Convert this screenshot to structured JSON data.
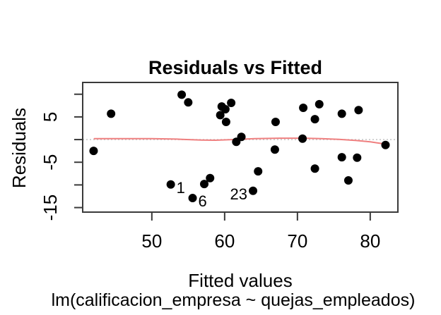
{
  "figure": {
    "title": "Residuals vs Fitted",
    "ylabel": "Residuals",
    "xlabel": "Fitted values",
    "subtitle": "lm(calificacion_empresa ~ quejas_empleados)"
  },
  "colors": {
    "background": "#ffffff",
    "point": "#000000",
    "smooth_line": "#ef7f7f",
    "zero_line": "#c8c8c8",
    "axis": "#3a3a3a",
    "text": "#000000"
  },
  "chart_data": {
    "type": "scatter",
    "title": "Residuals vs Fitted",
    "xlabel": "Fitted values",
    "ylabel": "Residuals",
    "model_caption": "lm(calificacion_empresa ~ quejas_empleados)",
    "x_range": [
      40.5,
      83.8
    ],
    "y_range": [
      -16.0,
      12.6
    ],
    "x_ticks": [
      50,
      60,
      70,
      80
    ],
    "y_ticks": [
      10,
      5,
      0,
      -5,
      -10,
      -15
    ],
    "y_tick_labeled": [
      5,
      -5,
      -15
    ],
    "grid": false,
    "legend": null,
    "point_color": "#000000",
    "points": [
      [
        42.0,
        -2.5
      ],
      [
        44.4,
        5.7
      ],
      [
        52.6,
        -9.9
      ],
      [
        54.1,
        9.9
      ],
      [
        55.0,
        8.2
      ],
      [
        55.6,
        -12.9
      ],
      [
        57.2,
        -9.8
      ],
      [
        58.0,
        -8.5
      ],
      [
        59.4,
        5.4
      ],
      [
        59.6,
        7.3
      ],
      [
        60.1,
        6.7
      ],
      [
        60.2,
        3.9
      ],
      [
        60.9,
        8.1
      ],
      [
        61.6,
        -0.5
      ],
      [
        62.3,
        0.6
      ],
      [
        63.9,
        -11.3
      ],
      [
        64.6,
        -7.0
      ],
      [
        66.9,
        -2.2
      ],
      [
        67.0,
        3.9
      ],
      [
        70.7,
        0.2
      ],
      [
        70.8,
        7.0
      ],
      [
        72.4,
        4.5
      ],
      [
        72.4,
        -6.4
      ],
      [
        73.0,
        7.8
      ],
      [
        76.1,
        5.7
      ],
      [
        76.1,
        -3.9
      ],
      [
        77.0,
        -9.0
      ],
      [
        78.2,
        -4.0
      ],
      [
        78.4,
        6.5
      ],
      [
        82.1,
        -1.2
      ]
    ],
    "labeled_points": [
      {
        "label": "1",
        "x": 52.6,
        "y": -9.9,
        "side": "right"
      },
      {
        "label": "6",
        "x": 55.6,
        "y": -12.9,
        "side": "right"
      },
      {
        "label": "23",
        "x": 63.9,
        "y": -11.3,
        "side": "left"
      }
    ],
    "zero_line": {
      "y": 0,
      "style": "dotted",
      "color": "#c8c8c8"
    },
    "smooth_line": {
      "color": "#ef7f7f",
      "points": [
        [
          42.1,
          0.2
        ],
        [
          46.6,
          0.2
        ],
        [
          50.0,
          0.2
        ],
        [
          53.4,
          0.1
        ],
        [
          56.8,
          -0.1
        ],
        [
          58.7,
          -0.15
        ],
        [
          61.2,
          0.0
        ],
        [
          64.1,
          0.2
        ],
        [
          67.5,
          0.3
        ],
        [
          70.9,
          0.3
        ],
        [
          73.3,
          0.2
        ],
        [
          75.7,
          0.05
        ],
        [
          78.1,
          -0.2
        ],
        [
          80.0,
          -0.5
        ],
        [
          82.1,
          -1.0
        ]
      ]
    }
  }
}
